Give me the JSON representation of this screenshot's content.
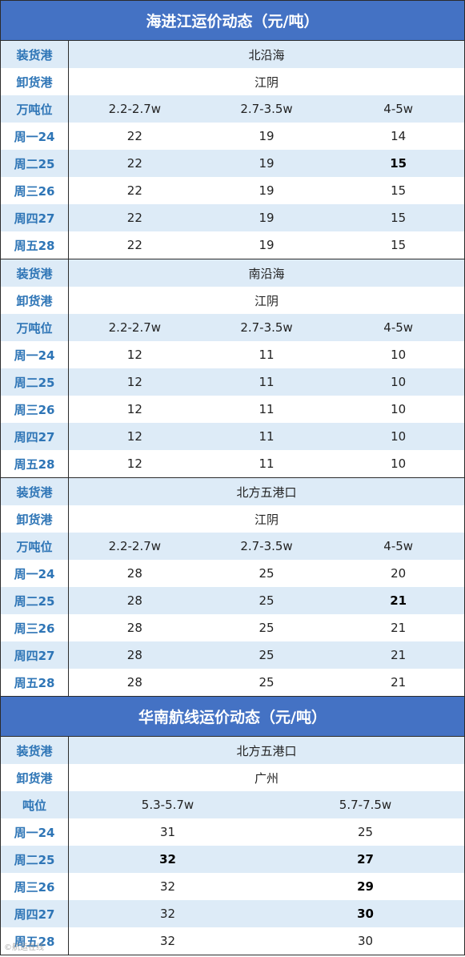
{
  "section1": {
    "title": "海进江运价动态（元/吨）",
    "blocks": [
      {
        "rows": [
          {
            "label": "装货港",
            "span": "北沿海"
          },
          {
            "label": "卸货港",
            "span": "江阴"
          },
          {
            "label": "万吨位",
            "cells": [
              "2.2-2.7w",
              "2.7-3.5w",
              "4-5w"
            ]
          },
          {
            "label": "周一24",
            "cells": [
              "22",
              "19",
              "14"
            ]
          },
          {
            "label": "周二25",
            "cells": [
              "22",
              "19",
              "15"
            ],
            "bold": [
              false,
              false,
              true
            ]
          },
          {
            "label": "周三26",
            "cells": [
              "22",
              "19",
              "15"
            ]
          },
          {
            "label": "周四27",
            "cells": [
              "22",
              "19",
              "15"
            ]
          },
          {
            "label": "周五28",
            "cells": [
              "22",
              "19",
              "15"
            ]
          }
        ]
      },
      {
        "rows": [
          {
            "label": "装货港",
            "span": "南沿海"
          },
          {
            "label": "卸货港",
            "span": "江阴"
          },
          {
            "label": "万吨位",
            "cells": [
              "2.2-2.7w",
              "2.7-3.5w",
              "4-5w"
            ]
          },
          {
            "label": "周一24",
            "cells": [
              "12",
              "11",
              "10"
            ]
          },
          {
            "label": "周二25",
            "cells": [
              "12",
              "11",
              "10"
            ]
          },
          {
            "label": "周三26",
            "cells": [
              "12",
              "11",
              "10"
            ]
          },
          {
            "label": "周四27",
            "cells": [
              "12",
              "11",
              "10"
            ]
          },
          {
            "label": "周五28",
            "cells": [
              "12",
              "11",
              "10"
            ]
          }
        ]
      },
      {
        "rows": [
          {
            "label": "装货港",
            "span": "北方五港口"
          },
          {
            "label": "卸货港",
            "span": "江阴"
          },
          {
            "label": "万吨位",
            "cells": [
              "2.2-2.7w",
              "2.7-3.5w",
              "4-5w"
            ]
          },
          {
            "label": "周一24",
            "cells": [
              "28",
              "25",
              "20"
            ]
          },
          {
            "label": "周二25",
            "cells": [
              "28",
              "25",
              "21"
            ],
            "bold": [
              false,
              false,
              true
            ]
          },
          {
            "label": "周三26",
            "cells": [
              "28",
              "25",
              "21"
            ]
          },
          {
            "label": "周四27",
            "cells": [
              "28",
              "25",
              "21"
            ]
          },
          {
            "label": "周五28",
            "cells": [
              "28",
              "25",
              "21"
            ]
          }
        ]
      }
    ]
  },
  "section2": {
    "title": "华南航线运价动态（元/吨）",
    "blocks": [
      {
        "rows": [
          {
            "label": "装货港",
            "span": "北方五港口"
          },
          {
            "label": "卸货港",
            "span": "广州"
          },
          {
            "label": "吨位",
            "cells": [
              "5.3-5.7w",
              "5.7-7.5w"
            ]
          },
          {
            "label": "周一24",
            "cells": [
              "31",
              "25"
            ]
          },
          {
            "label": "周二25",
            "cells": [
              "32",
              "27"
            ],
            "bold": [
              true,
              true
            ]
          },
          {
            "label": "周三26",
            "cells": [
              "32",
              "29"
            ],
            "bold": [
              false,
              true
            ]
          },
          {
            "label": "周四27",
            "cells": [
              "32",
              "30"
            ],
            "bold": [
              false,
              true
            ]
          },
          {
            "label": "周五28",
            "cells": [
              "32",
              "30"
            ]
          }
        ]
      }
    ]
  },
  "watermark": "©航运在线"
}
